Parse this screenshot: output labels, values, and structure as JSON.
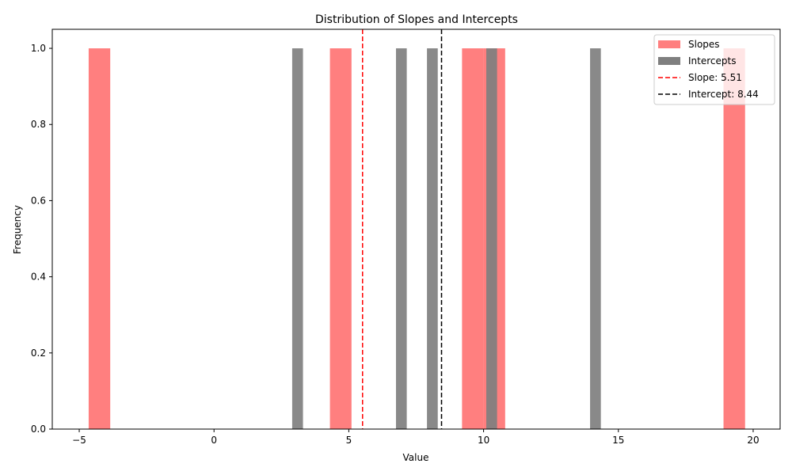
{
  "chart_data": {
    "type": "bar",
    "title": "Distribution of Slopes and Intercepts",
    "xlabel": "Value",
    "ylabel": "Frequency",
    "xlim": [
      -6,
      21
    ],
    "ylim": [
      0,
      1.05
    ],
    "xticks": [
      -5,
      0,
      5,
      10,
      15,
      20
    ],
    "yticks": [
      0.0,
      0.2,
      0.4,
      0.6,
      0.8,
      1.0
    ],
    "xtick_labels": [
      "−5",
      "0",
      "5",
      "10",
      "15",
      "20"
    ],
    "ytick_labels": [
      "0.0",
      "0.2",
      "0.4",
      "0.6",
      "0.8",
      "1.0"
    ],
    "grid": false,
    "legend_position": "top-right",
    "series": [
      {
        "name": "Slopes",
        "color": "#ff7f7f",
        "bins": [
          {
            "x0": -4.65,
            "x1": -3.85,
            "count": 1
          },
          {
            "x0": 4.3,
            "x1": 5.1,
            "count": 1
          },
          {
            "x0": 9.2,
            "x1": 10.0,
            "count": 1
          },
          {
            "x0": 10.0,
            "x1": 10.8,
            "count": 1
          },
          {
            "x0": 18.9,
            "x1": 19.7,
            "count": 1
          }
        ]
      },
      {
        "name": "Intercepts",
        "color": "#7f7f7f",
        "bins": [
          {
            "x0": 2.9,
            "x1": 3.3,
            "count": 1
          },
          {
            "x0": 6.75,
            "x1": 7.15,
            "count": 1
          },
          {
            "x0": 7.9,
            "x1": 8.3,
            "count": 1
          },
          {
            "x0": 10.1,
            "x1": 10.5,
            "count": 1
          },
          {
            "x0": 13.95,
            "x1": 14.35,
            "count": 1
          }
        ]
      }
    ],
    "reference_lines": [
      {
        "label": "Slope: 5.51",
        "x": 5.51,
        "color": "#ff0000"
      },
      {
        "label": "Intercept: 8.44",
        "x": 8.44,
        "color": "#000000"
      }
    ]
  }
}
